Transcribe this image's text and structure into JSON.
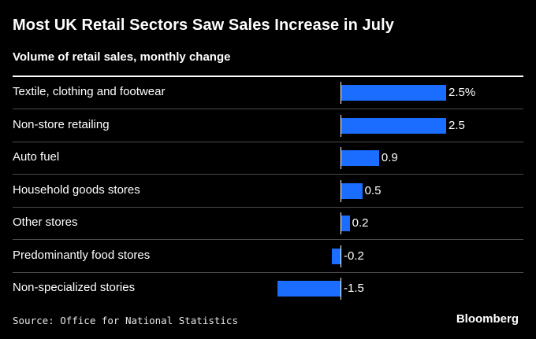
{
  "title": "Most UK Retail Sectors Saw Sales Increase in July",
  "subtitle": "Volume of retail sales, monthly change",
  "source": "Source: Office for National Statistics",
  "brand": "Bloomberg",
  "colors": {
    "bar": "#1a6dff",
    "background": "#000000",
    "text": "#ffffff"
  },
  "chart_data": {
    "type": "bar",
    "orientation": "horizontal",
    "title": "Most UK Retail Sectors Saw Sales Increase in July",
    "subtitle": "Volume of retail sales, monthly change",
    "categories": [
      "Textile, clothing and footwear",
      "Non-store retailing",
      "Auto fuel",
      "Household goods stores",
      "Other stores",
      "Predominantly food stores",
      "Non-specialized stories"
    ],
    "values": [
      2.5,
      2.5,
      0.9,
      0.5,
      0.2,
      -0.2,
      -1.5
    ],
    "value_labels": [
      "2.5%",
      "2.5",
      "0.9",
      "0.5",
      "0.2",
      "-0.2",
      "-1.5"
    ],
    "xlim": [
      -1.5,
      2.5
    ],
    "grid": false,
    "legend": "none"
  }
}
